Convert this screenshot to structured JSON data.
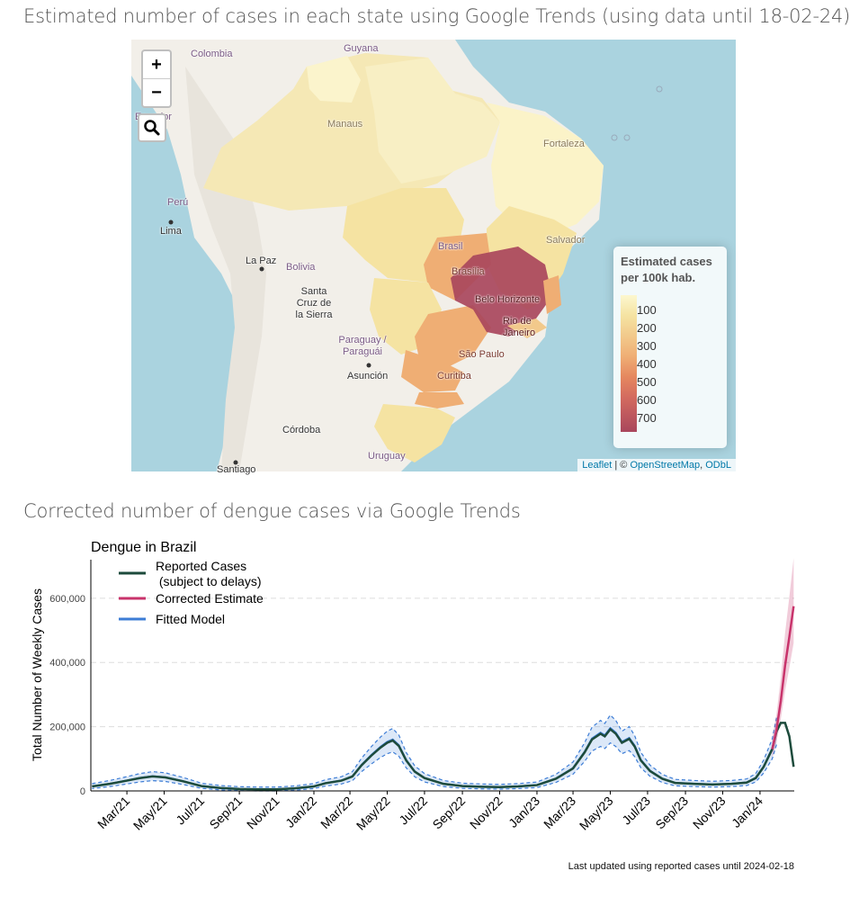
{
  "map_title": "Estimated number of cases in each state using Google Trends (using data until 18-02-24)",
  "chart_title": "Corrected number of dengue cases via Google Trends",
  "map": {
    "zoom_in": "+",
    "zoom_out": "−",
    "search_icon": "magnifier-icon",
    "legend": {
      "title": "Estimated cases per 100k hab.",
      "ticks": [
        "100",
        "200",
        "300",
        "400",
        "500",
        "600",
        "700"
      ],
      "colors": [
        "#fcf7cf",
        "#f2c98b",
        "#efae74",
        "#e5875f",
        "#d36a5f",
        "#a9465c"
      ]
    },
    "attribution": {
      "leaflet": "Leaflet",
      "sep": " | © ",
      "osm": "OpenStreetMap",
      "odbl": "ODbL"
    },
    "labels": {
      "colombia": "Colombia",
      "guyana": "Guyana",
      "ecuador": "Ecuador",
      "manaus": "Manaus",
      "fortaleza": "Fortaleza",
      "peru": "Perú",
      "lima": "Lima",
      "salvador": "Salvador",
      "brasil": "Brasil",
      "brasilia": "Brasília",
      "belo": "Belo Horizonte",
      "rio": "Rio de Janeiro",
      "lapaz": "La Paz",
      "bolivia": "Bolivia",
      "santacruz": "Santa Cruz de la Sierra",
      "paraguay": "Paraguay / Paraguái",
      "asuncion": "Asunción",
      "saopaulo": "São Paulo",
      "curitiba": "Curitiba",
      "cordoba": "Córdoba",
      "uruguay": "Uruguay",
      "santiago": "Santiago"
    }
  },
  "chart_data": {
    "type": "line",
    "title": "Dengue in Brazil",
    "ylabel": "Total Number of Weekly Cases",
    "ylim": [
      0,
      720000
    ],
    "yticks": [
      "0",
      "200,000",
      "400,000",
      "600,000"
    ],
    "xticks": [
      "Mar/21",
      "May/21",
      "Jul/21",
      "Sep/21",
      "Nov/21",
      "Jan/22",
      "Mar/22",
      "May/22",
      "Jul/22",
      "Sep/22",
      "Nov/22",
      "Jan/23",
      "Mar/23",
      "May/23",
      "Jul/23",
      "Sep/23",
      "Nov/23",
      "Jan/24"
    ],
    "legend": [
      "Reported Cases\n (subject to delays)",
      "Corrected Estimate",
      "Fitted Model"
    ],
    "colors": {
      "reported": "#1d4b3c",
      "corrected": "#c8336b",
      "fitted": "#3d7dd6"
    },
    "series": [
      {
        "name": "Reported Cases (subject to delays)",
        "points": [
          [
            "2021-01-03",
            14000
          ],
          [
            "2021-02-01",
            22000
          ],
          [
            "2021-03-01",
            32000
          ],
          [
            "2021-03-22",
            40000
          ],
          [
            "2021-04-12",
            45000
          ],
          [
            "2021-05-03",
            42000
          ],
          [
            "2021-06-01",
            30000
          ],
          [
            "2021-07-01",
            15000
          ],
          [
            "2021-08-01",
            9000
          ],
          [
            "2021-09-01",
            6000
          ],
          [
            "2021-10-01",
            5000
          ],
          [
            "2021-11-01",
            5000
          ],
          [
            "2021-12-01",
            8000
          ],
          [
            "2022-01-01",
            14000
          ],
          [
            "2022-01-20",
            24000
          ],
          [
            "2022-02-15",
            32000
          ],
          [
            "2022-03-05",
            45000
          ],
          [
            "2022-03-20",
            80000
          ],
          [
            "2022-04-05",
            110000
          ],
          [
            "2022-04-20",
            135000
          ],
          [
            "2022-05-01",
            150000
          ],
          [
            "2022-05-10",
            157000
          ],
          [
            "2022-05-20",
            140000
          ],
          [
            "2022-06-01",
            95000
          ],
          [
            "2022-06-15",
            60000
          ],
          [
            "2022-07-01",
            40000
          ],
          [
            "2022-08-01",
            22000
          ],
          [
            "2022-09-01",
            15000
          ],
          [
            "2022-10-01",
            13000
          ],
          [
            "2022-11-01",
            12000
          ],
          [
            "2022-12-01",
            14000
          ],
          [
            "2023-01-01",
            18000
          ],
          [
            "2023-02-01",
            38000
          ],
          [
            "2023-03-01",
            70000
          ],
          [
            "2023-03-20",
            120000
          ],
          [
            "2023-04-01",
            160000
          ],
          [
            "2023-04-15",
            178000
          ],
          [
            "2023-04-22",
            170000
          ],
          [
            "2023-05-01",
            192000
          ],
          [
            "2023-05-10",
            178000
          ],
          [
            "2023-05-20",
            150000
          ],
          [
            "2023-06-01",
            162000
          ],
          [
            "2023-06-10",
            138000
          ],
          [
            "2023-06-20",
            95000
          ],
          [
            "2023-07-05",
            62000
          ],
          [
            "2023-07-25",
            38000
          ],
          [
            "2023-08-15",
            25000
          ],
          [
            "2023-09-15",
            22000
          ],
          [
            "2023-10-15",
            20000
          ],
          [
            "2023-11-15",
            22000
          ],
          [
            "2023-12-10",
            26000
          ],
          [
            "2023-12-25",
            40000
          ],
          [
            "2024-01-07",
            75000
          ],
          [
            "2024-01-21",
            130000
          ],
          [
            "2024-01-28",
            185000
          ],
          [
            "2024-02-04",
            212000
          ],
          [
            "2024-02-11",
            212000
          ],
          [
            "2024-02-18",
            170000
          ],
          [
            "2024-02-25",
            75000
          ]
        ]
      },
      {
        "name": "Corrected Estimate",
        "points": [
          [
            "2024-01-21",
            130000
          ],
          [
            "2024-01-28",
            190000
          ],
          [
            "2024-02-04",
            280000
          ],
          [
            "2024-02-11",
            390000
          ],
          [
            "2024-02-18",
            480000
          ],
          [
            "2024-02-25",
            575000
          ]
        ]
      }
    ]
  },
  "footnote": "Last updated using reported cases until 2024-02-18"
}
